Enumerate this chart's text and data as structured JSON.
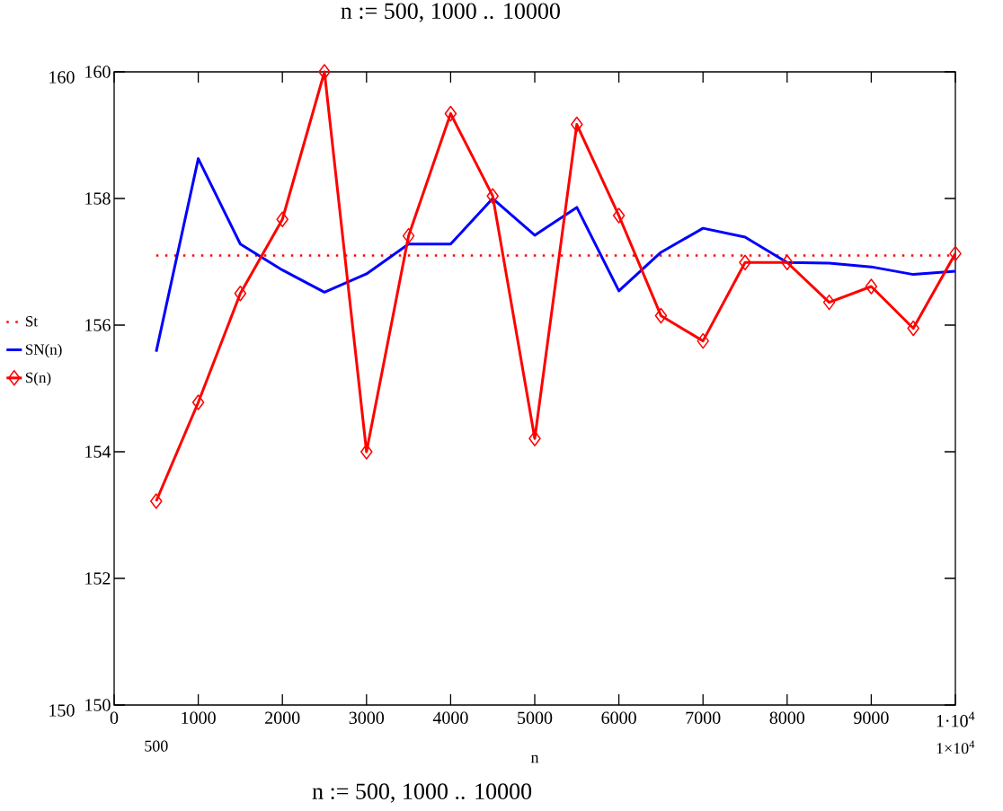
{
  "chart_data": {
    "type": "line",
    "title": "n := 500, 1000 .. 10000",
    "xlabel": "n",
    "xlim": [
      0,
      10000
    ],
    "ylim": [
      150,
      160
    ],
    "xticks": [
      0,
      1000,
      2000,
      3000,
      4000,
      5000,
      6000,
      7000,
      8000,
      9000,
      {
        "value": 10000,
        "label": "1·10$^{4}$"
      }
    ],
    "yticks": [
      150,
      152,
      154,
      156,
      158,
      160
    ],
    "legend": "left",
    "annotations": [
      "n := 500, 1000 .. 10000"
    ],
    "y2lim": [
      150,
      160
    ],
    "y2ticks": [
      150,
      160
    ],
    "x2lim": [
      0,
      10000
    ],
    "x2ticks": [
      500,
      {
        "value": 10000,
        "label": "1×10$^{4}$"
      }
    ],
    "series": [
      {
        "name": "St",
        "color": "#ff0000",
        "line_style": "dotted",
        "marker": "none",
        "x": [
          500,
          10000
        ],
        "values": [
          157.1,
          157.1
        ]
      },
      {
        "name": "SN(n)",
        "color": "#0000ff",
        "line_style": "solid",
        "marker": "none",
        "x": [
          500,
          1000,
          1500,
          2000,
          2500,
          3000,
          3500,
          4000,
          4500,
          5000,
          5500,
          6000,
          6500,
          7000,
          7500,
          8000,
          8500,
          9000,
          9500,
          10000
        ],
        "values": [
          155.58,
          158.63,
          157.28,
          156.87,
          156.52,
          156.81,
          157.28,
          157.28,
          158.0,
          157.42,
          157.86,
          156.54,
          157.15,
          157.53,
          157.39,
          156.99,
          156.98,
          156.92,
          156.8,
          156.85
        ]
      },
      {
        "name": "S(n)",
        "color": "#ff0000",
        "line_style": "solid",
        "marker": "diamond",
        "x": [
          500,
          1000,
          1500,
          2000,
          2500,
          3000,
          3500,
          4000,
          4500,
          5000,
          5500,
          6000,
          6500,
          7000,
          7500,
          8000,
          8500,
          9000,
          9500,
          10000
        ],
        "values": [
          153.22,
          154.78,
          156.5,
          157.67,
          160.0,
          154.0,
          157.41,
          159.34,
          158.04,
          154.21,
          159.17,
          157.73,
          156.15,
          155.75,
          156.99,
          156.99,
          156.36,
          156.61,
          155.95,
          157.13
        ]
      }
    ]
  }
}
